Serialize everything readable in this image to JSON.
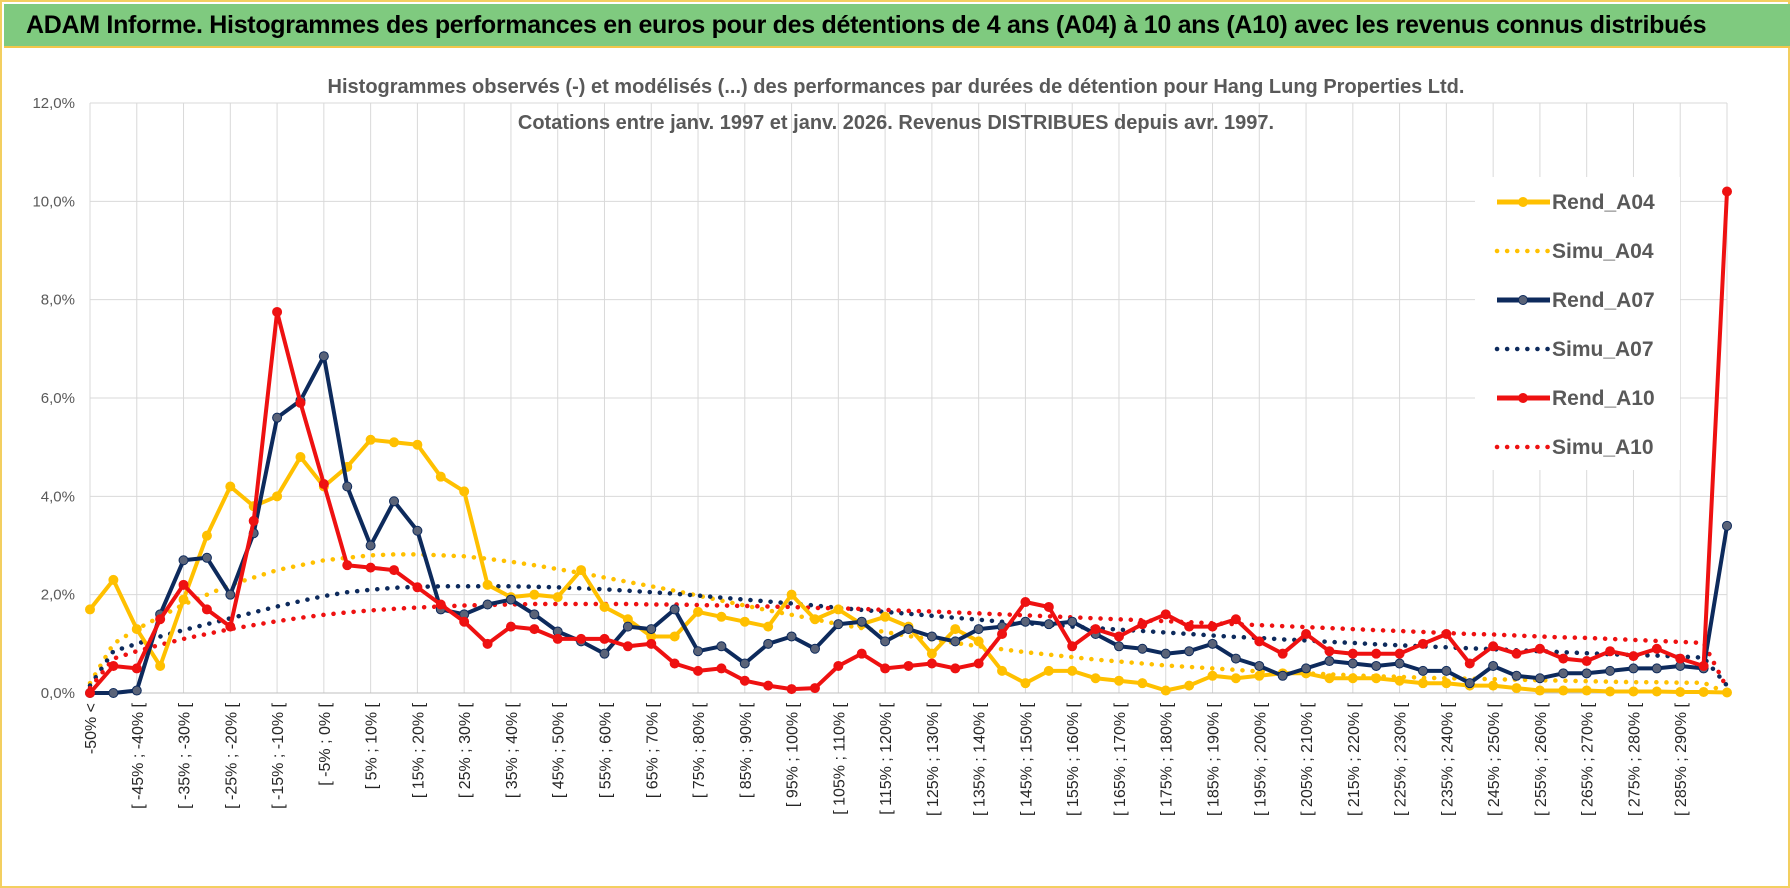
{
  "banner": {
    "title": "ADAM Informe. Histogrammes des performances en euros pour des détentions de 4 ans (A04) à 10 ans (A10) avec les revenus connus distribués"
  },
  "colors": {
    "banner_bg": "#7fca7f",
    "a04": "#ffc000",
    "a07": "#0d2a5c",
    "a10": "#ee1111",
    "grid": "#d9d9d9"
  },
  "chart_data": {
    "type": "line",
    "title": "Histogrammes observés (-) et modélisés (...) des performances par durées de détention pour Hang Lung Properties Ltd.",
    "subtitle": "Cotations entre janv. 1997 et janv. 2026. Revenus DISTRIBUES depuis avr. 1997.",
    "ylim": [
      0,
      12
    ],
    "ytick_labels": [
      "0,0%",
      "2,0%",
      "4,0%",
      "6,0%",
      "8,0%",
      "10,0%",
      "12,0%"
    ],
    "xtick_labels": [
      "-50% <",
      "[ -45% ; -40% [",
      "[ -35% ; -30% [",
      "[ -25% ; -20% [",
      "[ -15% ; -10% [",
      "[ -5% ; 0% [",
      "[ 5% ; 10% [",
      "[ 15% ; 20% [",
      "[ 25% ; 30% [",
      "[ 35% ; 40% [",
      "[ 45% ; 50% [",
      "[ 55% ; 60% [",
      "[ 65% ; 70% [",
      "[ 75% ; 80% [",
      "[ 85% ; 90% [",
      "[ 95% ; 100% [",
      "[ 105% ; 110% [",
      "[ 115% ; 120% [",
      "[ 125% ; 130% [",
      "[ 135% ; 140% [",
      "[ 145% ; 150% [",
      "[ 155% ; 160% [",
      "[ 165% ; 170% [",
      "[ 175% ; 180% [",
      "[ 185% ; 190% [",
      "[ 195% ; 200% [",
      "[ 205% ; 210% [",
      "[ 215% ; 220% [",
      "[ 225% ; 230% [",
      "[ 235% ; 240% [",
      "[ 245% ; 250% [",
      "[ 255% ; 260% [",
      "[ 265% ; 270% [",
      "[ 275% ; 280% [",
      "[ 285% ; 290% ["
    ],
    "num_points": 71,
    "legend_position": "top-right",
    "series": [
      {
        "name": "Rend_A04",
        "style": "solid",
        "color": "#ffc000",
        "markers": true,
        "values": [
          1.7,
          2.3,
          1.3,
          0.55,
          1.9,
          3.2,
          4.2,
          3.8,
          4.0,
          4.8,
          4.2,
          4.6,
          5.15,
          5.1,
          5.05,
          4.4,
          4.1,
          2.2,
          1.95,
          2.0,
          1.95,
          2.5,
          1.75,
          1.5,
          1.15,
          1.15,
          1.65,
          1.55,
          1.45,
          1.35,
          2.0,
          1.5,
          1.7,
          1.4,
          1.55,
          1.35,
          0.8,
          1.3,
          1.05,
          0.45,
          0.2,
          0.45,
          0.45,
          0.3,
          0.25,
          0.2,
          0.05,
          0.15,
          0.35,
          0.3,
          0.35,
          0.4,
          0.4,
          0.3,
          0.3,
          0.3,
          0.25,
          0.2,
          0.2,
          0.15,
          0.15,
          0.1,
          0.05,
          0.05,
          0.05,
          0.03,
          0.03,
          0.03,
          0.02,
          0.02,
          0.01
        ]
      },
      {
        "name": "Simu_A04",
        "style": "dotted",
        "color": "#ffc000",
        "markers": false,
        "values": [
          0.2,
          1.0,
          1.3,
          1.55,
          1.8,
          2.0,
          2.2,
          2.35,
          2.5,
          2.6,
          2.7,
          2.75,
          2.8,
          2.82,
          2.82,
          2.8,
          2.78,
          2.73,
          2.67,
          2.6,
          2.52,
          2.44,
          2.35,
          2.26,
          2.17,
          2.08,
          1.98,
          1.88,
          1.78,
          1.68,
          1.59,
          1.5,
          1.4,
          1.32,
          1.24,
          1.16,
          1.09,
          1.02,
          0.95,
          0.89,
          0.83,
          0.78,
          0.73,
          0.68,
          0.64,
          0.6,
          0.56,
          0.53,
          0.5,
          0.47,
          0.44,
          0.42,
          0.4,
          0.38,
          0.36,
          0.34,
          0.33,
          0.31,
          0.3,
          0.29,
          0.28,
          0.27,
          0.26,
          0.25,
          0.24,
          0.23,
          0.22,
          0.22,
          0.21,
          0.21,
          0.0
        ]
      },
      {
        "name": "Rend_A07",
        "style": "solid",
        "color": "#0d2a5c",
        "markers": true,
        "values": [
          0.0,
          0.0,
          0.05,
          1.6,
          2.7,
          2.75,
          2.0,
          3.25,
          5.6,
          5.95,
          6.85,
          4.2,
          3.0,
          3.9,
          3.3,
          1.7,
          1.6,
          1.8,
          1.9,
          1.6,
          1.25,
          1.05,
          0.8,
          1.35,
          1.3,
          1.7,
          0.85,
          0.95,
          0.6,
          1.0,
          1.15,
          0.9,
          1.4,
          1.45,
          1.05,
          1.3,
          1.15,
          1.05,
          1.3,
          1.35,
          1.45,
          1.4,
          1.45,
          1.2,
          0.95,
          0.9,
          0.8,
          0.85,
          1.0,
          0.7,
          0.55,
          0.35,
          0.5,
          0.65,
          0.6,
          0.55,
          0.6,
          0.45,
          0.45,
          0.2,
          0.55,
          0.35,
          0.3,
          0.4,
          0.4,
          0.45,
          0.5,
          0.5,
          0.55,
          0.5,
          3.4
        ]
      },
      {
        "name": "Simu_A07",
        "style": "dotted",
        "color": "#0d2a5c",
        "markers": false,
        "values": [
          0.15,
          0.85,
          1.0,
          1.15,
          1.28,
          1.4,
          1.52,
          1.64,
          1.76,
          1.87,
          1.97,
          2.05,
          2.1,
          2.14,
          2.16,
          2.17,
          2.17,
          2.17,
          2.17,
          2.16,
          2.15,
          2.13,
          2.11,
          2.08,
          2.05,
          2.02,
          1.98,
          1.94,
          1.9,
          1.86,
          1.82,
          1.78,
          1.73,
          1.69,
          1.65,
          1.61,
          1.57,
          1.53,
          1.49,
          1.45,
          1.42,
          1.39,
          1.35,
          1.32,
          1.29,
          1.26,
          1.23,
          1.2,
          1.17,
          1.14,
          1.12,
          1.09,
          1.07,
          1.04,
          1.02,
          0.99,
          0.97,
          0.95,
          0.93,
          0.91,
          0.89,
          0.87,
          0.85,
          0.83,
          0.81,
          0.79,
          0.77,
          0.76,
          0.74,
          0.72,
          0.15
        ]
      },
      {
        "name": "Rend_A10",
        "style": "solid",
        "color": "#ee1111",
        "markers": true,
        "values": [
          0.0,
          0.55,
          0.5,
          1.5,
          2.2,
          1.7,
          1.35,
          3.5,
          7.75,
          5.9,
          4.25,
          2.6,
          2.55,
          2.5,
          2.15,
          1.8,
          1.45,
          1.0,
          1.35,
          1.3,
          1.1,
          1.1,
          1.1,
          0.95,
          1.0,
          0.6,
          0.45,
          0.5,
          0.25,
          0.15,
          0.08,
          0.1,
          0.55,
          0.8,
          0.5,
          0.55,
          0.6,
          0.5,
          0.6,
          1.2,
          1.85,
          1.75,
          0.95,
          1.3,
          1.15,
          1.4,
          1.6,
          1.35,
          1.35,
          1.5,
          1.05,
          0.8,
          1.2,
          0.85,
          0.8,
          0.8,
          0.8,
          1.0,
          1.2,
          0.6,
          0.95,
          0.8,
          0.9,
          0.7,
          0.65,
          0.85,
          0.75,
          0.9,
          0.7,
          0.55,
          10.2
        ]
      },
      {
        "name": "Simu_A10",
        "style": "dotted",
        "color": "#ee1111",
        "markers": false,
        "values": [
          0.1,
          0.7,
          0.85,
          0.98,
          1.1,
          1.2,
          1.3,
          1.38,
          1.46,
          1.53,
          1.59,
          1.64,
          1.68,
          1.71,
          1.74,
          1.76,
          1.78,
          1.79,
          1.8,
          1.81,
          1.81,
          1.81,
          1.81,
          1.81,
          1.8,
          1.8,
          1.79,
          1.78,
          1.77,
          1.76,
          1.75,
          1.73,
          1.72,
          1.71,
          1.69,
          1.67,
          1.66,
          1.64,
          1.62,
          1.6,
          1.58,
          1.56,
          1.54,
          1.52,
          1.5,
          1.48,
          1.46,
          1.44,
          1.42,
          1.4,
          1.38,
          1.36,
          1.34,
          1.32,
          1.3,
          1.28,
          1.26,
          1.24,
          1.22,
          1.2,
          1.19,
          1.17,
          1.15,
          1.13,
          1.12,
          1.1,
          1.08,
          1.06,
          1.04,
          1.02,
          0.1
        ]
      }
    ]
  }
}
